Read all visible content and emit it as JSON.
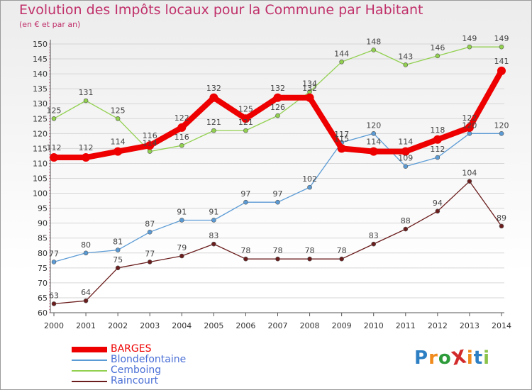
{
  "title": "Evolution des Impôts locaux pour la Commune par Habitant",
  "subtitle": "(en € et par an)",
  "logo": {
    "text": "ProXiti",
    "colors": [
      "#2d7fc4",
      "#f08a1c",
      "#2d9b3a",
      "#d22a2a",
      "#f08a1c",
      "#2d7fc4",
      "#8bc34a"
    ]
  },
  "chart_data": {
    "type": "line",
    "x": [
      "2000",
      "2001",
      "2002",
      "2003",
      "2004",
      "2005",
      "2006",
      "2007",
      "2008",
      "2009",
      "2010",
      "2011",
      "2012",
      "2013",
      "2014"
    ],
    "ylim": [
      60,
      150
    ],
    "yticks": [
      60,
      65,
      70,
      75,
      80,
      85,
      90,
      95,
      100,
      105,
      110,
      115,
      120,
      125,
      130,
      135,
      140,
      145,
      150
    ],
    "grid": true,
    "legend_position": "bottom-left",
    "series": [
      {
        "name": "BARGES",
        "color": "#ee0000",
        "text_color": "#ee0000",
        "values": [
          112,
          112,
          114,
          116,
          122,
          132,
          125,
          132,
          132,
          115,
          114,
          114,
          118,
          122,
          141
        ]
      },
      {
        "name": "Blondefontaine",
        "color": "#5b9bd5",
        "text_color": "#4a6fd6",
        "values": [
          77,
          80,
          81,
          87,
          91,
          91,
          97,
          97,
          102,
          117,
          120,
          109,
          112,
          120,
          120
        ]
      },
      {
        "name": "Cemboing",
        "color": "#92d050",
        "text_color": "#4a6fd6",
        "values": [
          125,
          131,
          125,
          114,
          116,
          121,
          121,
          126,
          134,
          144,
          148,
          143,
          146,
          149,
          149
        ]
      },
      {
        "name": "Raincourt",
        "color": "#6b1d1d",
        "text_color": "#4a6fd6",
        "values": [
          63,
          64,
          75,
          77,
          79,
          83,
          78,
          78,
          78,
          78,
          83,
          88,
          94,
          104,
          89
        ]
      }
    ]
  }
}
